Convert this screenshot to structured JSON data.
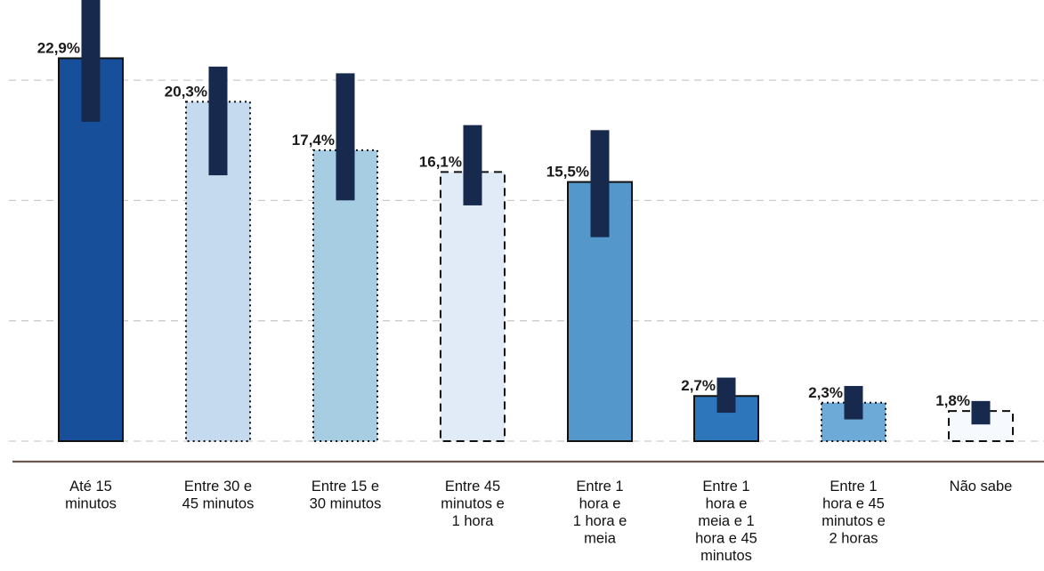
{
  "chart_data": {
    "type": "bar",
    "title": "",
    "xlabel": "",
    "ylabel": "",
    "ylim": [
      0,
      30
    ],
    "grid": true,
    "categories": [
      [
        "Até 15",
        "minutos"
      ],
      [
        "Entre 30 e",
        "45 minutos"
      ],
      [
        "Entre 15 e",
        "30 minutos"
      ],
      [
        "Entre 45",
        "minutos e",
        "1 hora"
      ],
      [
        "Entre 1",
        "hora e",
        "1 hora e",
        "meia"
      ],
      [
        "Entre 1",
        "hora e",
        "meia e 1",
        "hora e 45",
        "minutos"
      ],
      [
        "Entre 1",
        "hora e 45",
        "minutos e",
        "2 horas"
      ],
      [
        "Não sabe"
      ]
    ],
    "values": [
      22.9,
      20.3,
      17.4,
      16.1,
      15.5,
      2.7,
      2.3,
      1.8
    ],
    "value_labels": [
      "22,9%",
      "20,3%",
      "17,4%",
      "16,1%",
      "15,5%",
      "2,7%",
      "2,3%",
      "1,8%"
    ],
    "error_ranges": [
      [
        19.1,
        26.8
      ],
      [
        15.9,
        22.4
      ],
      [
        14.4,
        22.0
      ],
      [
        14.1,
        18.9
      ],
      [
        12.2,
        18.6
      ],
      [
        1.7,
        3.8
      ],
      [
        1.3,
        3.3
      ],
      [
        1.0,
        2.4
      ]
    ],
    "fills": [
      "#174f9b",
      "#c5daef",
      "#a6cde2",
      "#e0ebf7",
      "#5497cb",
      "#2d76bb",
      "#6eaad8",
      "#f6f9fd"
    ],
    "border_styles": [
      "solid",
      "dotted",
      "dotted",
      "dashed",
      "solid",
      "solid",
      "dotted",
      "dashed"
    ],
    "error_bar_color": "#172a4e",
    "grid_color": "#cccccc",
    "baseline_color": "#6b5a50"
  }
}
